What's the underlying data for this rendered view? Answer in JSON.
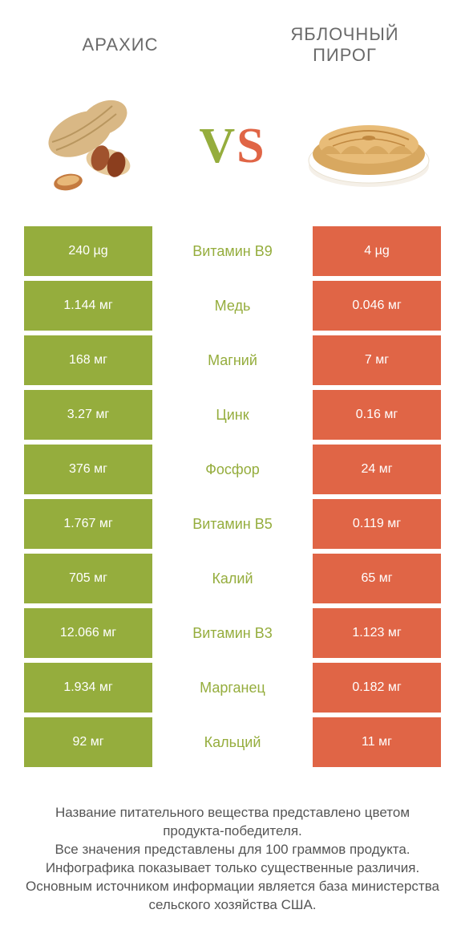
{
  "header": {
    "left_title": "АРАХИС",
    "right_title": "ЯБЛОЧНЫЙ ПИРОГ"
  },
  "vs": {
    "label_v": "V",
    "label_s": "S",
    "color_v": "#95ad3d",
    "color_s": "#e06546"
  },
  "colors": {
    "left_bg": "#95ad3d",
    "right_bg": "#e06546",
    "center_lose": "#888888",
    "row_gap_bg": "#ffffff"
  },
  "table": {
    "rows": [
      {
        "left": "240 µg",
        "center": "Витамин B9",
        "right": "4 µg",
        "winner": "left"
      },
      {
        "left": "1.144 мг",
        "center": "Медь",
        "right": "0.046 мг",
        "winner": "left"
      },
      {
        "left": "168 мг",
        "center": "Магний",
        "right": "7 мг",
        "winner": "left"
      },
      {
        "left": "3.27 мг",
        "center": "Цинк",
        "right": "0.16 мг",
        "winner": "left"
      },
      {
        "left": "376 мг",
        "center": "Фосфор",
        "right": "24 мг",
        "winner": "left"
      },
      {
        "left": "1.767 мг",
        "center": "Витамин B5",
        "right": "0.119 мг",
        "winner": "left"
      },
      {
        "left": "705 мг",
        "center": "Калий",
        "right": "65 мг",
        "winner": "left"
      },
      {
        "left": "12.066 мг",
        "center": "Витамин B3",
        "right": "1.123 мг",
        "winner": "left"
      },
      {
        "left": "1.934 мг",
        "center": "Марганец",
        "right": "0.182 мг",
        "winner": "left"
      },
      {
        "left": "92 мг",
        "center": "Кальций",
        "right": "11 мг",
        "winner": "left"
      }
    ]
  },
  "footer": {
    "line1": "Название питательного вещества представлено цветом продукта-победителя.",
    "line2": "Все значения представлены для 100 граммов продукта.",
    "line3": "Инфографика показывает только существенные различия.",
    "line4": "Основным источником информации является база министерства сельского хозяйства США."
  }
}
